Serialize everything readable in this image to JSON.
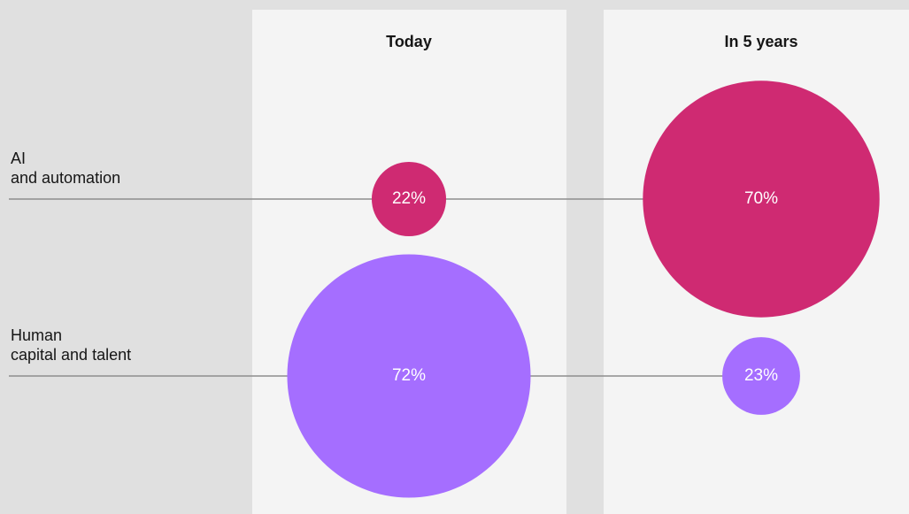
{
  "chart_data": {
    "type": "bubble",
    "categories": [
      "Today",
      "In 5 years"
    ],
    "series": [
      {
        "name": "AI\nand automation",
        "color": "#cf2a72",
        "values": [
          22,
          70
        ],
        "value_labels": [
          "22%",
          "70%"
        ]
      },
      {
        "name": "Human\ncapital and talent",
        "color": "#a56eff",
        "values": [
          72,
          23
        ],
        "value_labels": [
          "72%",
          "23%"
        ]
      }
    ]
  }
}
